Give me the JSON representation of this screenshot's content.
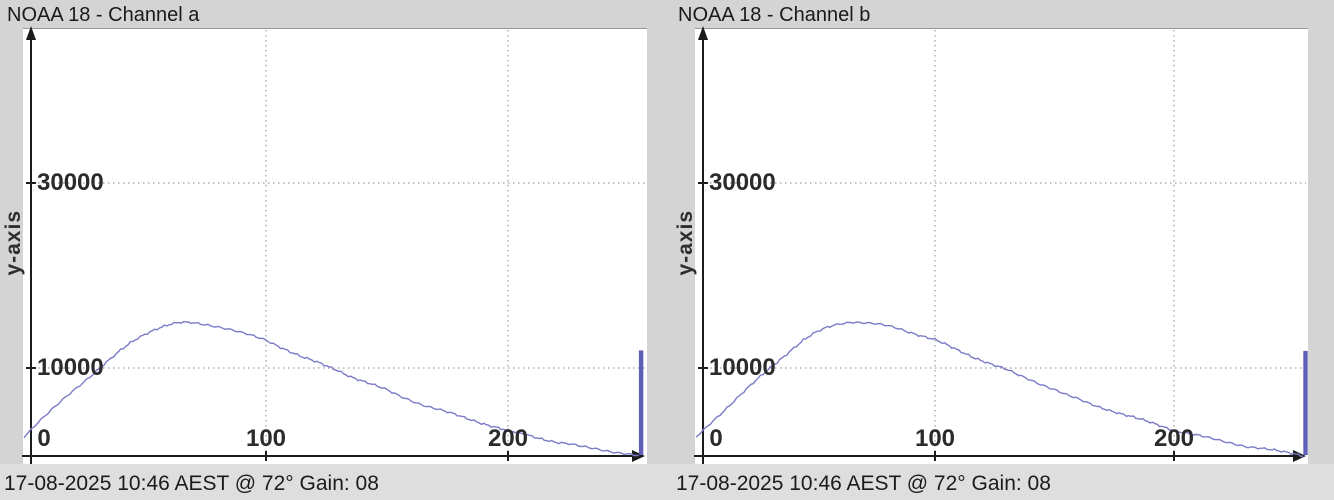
{
  "colors": {
    "background": "#d4d4d4",
    "panel": "#ffffff",
    "caption_band": "#dedede",
    "curve": "#7b7bc8",
    "spike_bar": "#5f5fb8",
    "axis": "#1c1c1c",
    "grid": "#9c9c9c",
    "text": "#2b2b2b"
  },
  "charts": [
    {
      "title": "NOAA 18 - Channel a",
      "y_axis_label": "y-axis",
      "caption": "17-08-2025 10:46 AEST @ 72° Gain: 08",
      "y_ticks": [
        {
          "value": 30000,
          "label": "30000"
        },
        {
          "value": 10000,
          "label": "10000"
        }
      ],
      "x_ticks": [
        {
          "value": 0,
          "label": "0"
        },
        {
          "value": 100,
          "label": "100"
        },
        {
          "value": 200,
          "label": "200"
        }
      ]
    },
    {
      "title": "NOAA 18 - Channel b",
      "y_axis_label": "y-axis",
      "caption": "17-08-2025 10:46 AEST @ 72° Gain: 08",
      "y_ticks": [
        {
          "value": 30000,
          "label": "30000"
        },
        {
          "value": 10000,
          "label": "10000"
        }
      ],
      "x_ticks": [
        {
          "value": 0,
          "label": "0"
        },
        {
          "value": 100,
          "label": "100"
        },
        {
          "value": 200,
          "label": "200"
        }
      ]
    }
  ],
  "chart_data": [
    {
      "type": "line",
      "title": "NOAA 18 - Channel a",
      "xlabel": "",
      "ylabel": "y-axis",
      "xlim": [
        0,
        256
      ],
      "ylim": [
        0,
        46500
      ],
      "grid": true,
      "x_tick_values": [
        0,
        100,
        200
      ],
      "y_tick_values": [
        10000,
        30000
      ],
      "x": [
        0,
        5,
        10,
        15,
        20,
        25,
        30,
        35,
        40,
        45,
        50,
        55,
        60,
        65,
        70,
        75,
        80,
        85,
        90,
        95,
        100,
        105,
        110,
        115,
        120,
        125,
        130,
        135,
        140,
        145,
        150,
        155,
        160,
        165,
        170,
        175,
        180,
        185,
        190,
        195,
        200,
        205,
        210,
        215,
        220,
        225,
        230,
        235,
        240,
        245,
        250,
        254
      ],
      "y": [
        2600,
        3900,
        5100,
        6300,
        7500,
        8600,
        9700,
        10800,
        11900,
        12900,
        13700,
        14300,
        14700,
        14900,
        14850,
        14700,
        14500,
        14200,
        13800,
        13400,
        13000,
        12400,
        11800,
        11200,
        10700,
        10200,
        9700,
        9100,
        8600,
        8100,
        7600,
        7000,
        6500,
        6000,
        5600,
        5200,
        4800,
        4400,
        4000,
        3600,
        3200,
        2900,
        2600,
        2300,
        2000,
        1800,
        1500,
        1300,
        1100,
        900,
        700,
        500
      ],
      "spike": {
        "x": 255,
        "y": 11900
      }
    },
    {
      "type": "line",
      "title": "NOAA 18 - Channel b",
      "xlabel": "",
      "ylabel": "y-axis",
      "xlim": [
        0,
        256
      ],
      "ylim": [
        0,
        46500
      ],
      "grid": true,
      "x_tick_values": [
        0,
        100,
        200
      ],
      "y_tick_values": [
        10000,
        30000
      ],
      "x": [
        0,
        5,
        10,
        15,
        20,
        25,
        30,
        35,
        40,
        45,
        50,
        55,
        60,
        65,
        70,
        75,
        80,
        85,
        90,
        95,
        100,
        105,
        110,
        115,
        120,
        125,
        130,
        135,
        140,
        145,
        150,
        155,
        160,
        165,
        170,
        175,
        180,
        185,
        190,
        195,
        200,
        205,
        210,
        215,
        220,
        225,
        230,
        235,
        240,
        245,
        250,
        254
      ],
      "y": [
        2500,
        3800,
        5000,
        6200,
        7400,
        8600,
        9800,
        10900,
        12000,
        13000,
        13800,
        14400,
        14800,
        15000,
        14900,
        14750,
        14550,
        14250,
        13850,
        13450,
        13050,
        12450,
        11850,
        11300,
        10800,
        10300,
        9800,
        9200,
        8700,
        8200,
        7700,
        7100,
        6600,
        6100,
        5700,
        5300,
        4900,
        4500,
        4100,
        3700,
        3300,
        3000,
        2700,
        2400,
        2100,
        1850,
        1550,
        1350,
        1150,
        950,
        750,
        550
      ],
      "spike": {
        "x": 255,
        "y": 11850
      }
    }
  ]
}
